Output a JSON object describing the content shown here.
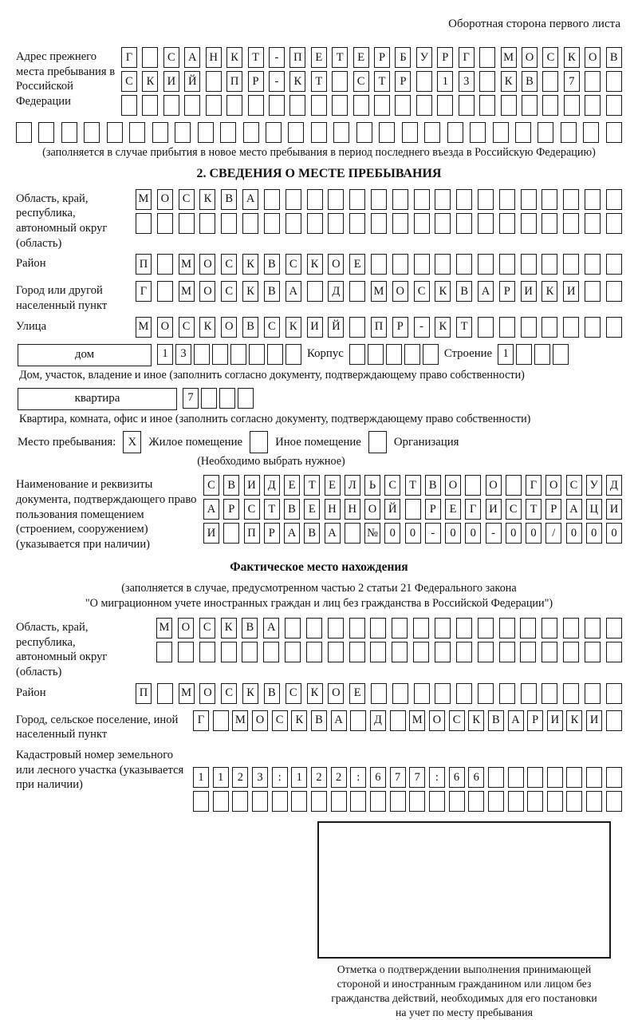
{
  "page_header": "Оборотная сторона первого листа",
  "prev_address": {
    "label": "Адрес прежнего места пребывания в Российской Федерации",
    "rows": [
      {
        "text": "Г САНКТ-ПЕТЕРБУРГ МОСКОВ",
        "len": 24
      },
      {
        "text": "СКИЙ ПР-КТ СТР 13 КВ 7",
        "len": 24
      },
      {
        "text": "",
        "len": 24
      }
    ],
    "full_row": {
      "text": "",
      "len": 27
    },
    "note": "(заполняется в случае прибытия в новое место пребывания в период последнего въезда в Российскую Федерацию)"
  },
  "section2": {
    "title": "2. СВЕДЕНИЯ О МЕСТЕ ПРЕБЫВАНИЯ",
    "region": {
      "label": "Область, край, республика, автономный округ (область)",
      "rows": [
        {
          "text": "МОСКВА",
          "len": 23
        },
        {
          "text": "",
          "len": 23
        }
      ]
    },
    "district": {
      "label": "Район",
      "row": {
        "text": "П МОСКВСКОЕ",
        "len": 23
      }
    },
    "city": {
      "label": "Город или другой населенный пункт",
      "row": {
        "text": "Г МОСКВА Д МОСКВАРИКИ",
        "len": 23
      }
    },
    "street": {
      "label": "Улица",
      "row": {
        "text": "МОСКОВСКИЙ ПР-КТ",
        "len": 23
      }
    },
    "house": {
      "box_label": "дом",
      "digits": {
        "text": "13",
        "len": 8
      },
      "korpus_label": "Корпус",
      "korpus": {
        "text": "",
        "len": 5
      },
      "stroenie_label": "Строение",
      "stroenie": {
        "text": "1",
        "len": 4
      },
      "note": "Дом, участок, владение и иное (заполнить согласно документу, подтверждающему право собственности)"
    },
    "apartment": {
      "box_label": "квартира",
      "digits": {
        "text": "7",
        "len": 4
      },
      "note": "Квартира, комната, офис и иное (заполнить согласно документу, подтверждающему право собственности)"
    },
    "stay_type": {
      "label": "Место пребывания:",
      "options": [
        {
          "mark": "X",
          "label": "Жилое помещение"
        },
        {
          "mark": "",
          "label": "Иное помещение"
        },
        {
          "mark": "",
          "label": "Организация"
        }
      ],
      "note": "(Необходимо выбрать нужное)"
    },
    "document": {
      "label": "Наименование и реквизиты документа, подтверждающего право пользования помещением (строением, сооружением) (указывается при наличии)",
      "rows": [
        {
          "text": "СВИДЕТЕЛЬСТВО О ГОСУД",
          "len": 21
        },
        {
          "text": "АРСТВЕННОЙ РЕГИСТРАЦИ",
          "len": 21
        },
        {
          "text": "И ПРАВА №00-00-00/000",
          "len": 21
        }
      ]
    }
  },
  "actual_location": {
    "title": "Фактическое место нахождения",
    "note_line1": "(заполняется в случае, предусмотренном частью 2 статьи 21 Федерального закона",
    "note_line2": "\"О миграционном учете иностранных граждан и лиц без гражданства в Российской Федерации\")",
    "region": {
      "label": "Область, край, республика, автономный округ (область)",
      "rows": [
        {
          "text": "МОСКВА",
          "len": 22
        },
        {
          "text": "",
          "len": 22
        }
      ]
    },
    "district": {
      "label": "Район",
      "row": {
        "text": "П МОСКВСКОЕ",
        "len": 23
      }
    },
    "city": {
      "label": "Город, сельское поселение, иной населенный пункт",
      "row": {
        "text": "Г МОСКВА Д МОСКВАРИКИ",
        "len": 22
      }
    },
    "cadastre": {
      "label": "Кадастровый номер земельного или лесного участка (указывается при наличии)",
      "rows": [
        {
          "text": "1123:122:677:66",
          "len": 22
        },
        {
          "text": "",
          "len": 22
        }
      ]
    },
    "stamp_note": [
      "Отметка о подтверждении выполнения принимающей",
      "стороной и иностранным гражданином или лицом без",
      "гражданства действий, необходимых для его постановки",
      "на учет по месту пребывания"
    ]
  }
}
